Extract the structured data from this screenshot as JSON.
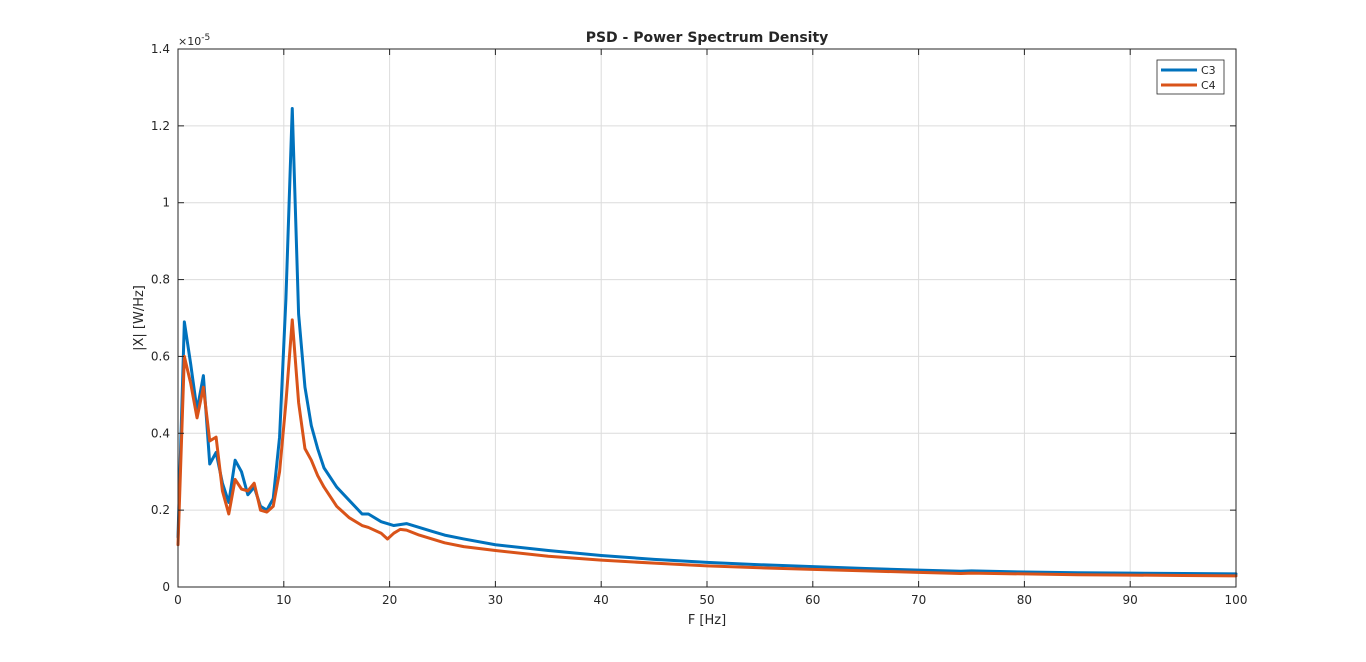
{
  "chart_data": {
    "type": "line",
    "title": "PSD - Power Spectrum Density",
    "xlabel": "F [Hz]",
    "ylabel": "|X| [W/Hz]",
    "y_exponent_label": "×10",
    "y_exponent_power": "-5",
    "xlim": [
      0,
      100
    ],
    "ylim": [
      0,
      1.4
    ],
    "x_ticks": [
      0,
      10,
      20,
      30,
      40,
      50,
      60,
      70,
      80,
      90,
      100
    ],
    "x_tick_labels": [
      "0",
      "10",
      "20",
      "30",
      "40",
      "50",
      "60",
      "70",
      "80",
      "90",
      "100"
    ],
    "y_ticks": [
      0,
      0.2,
      0.4,
      0.6,
      0.8,
      1.0,
      1.2,
      1.4
    ],
    "y_tick_labels": [
      "0",
      "0.2",
      "0.4",
      "0.6",
      "0.8",
      "1",
      "1.2",
      "1.4"
    ],
    "grid": true,
    "legend_position": "top-right",
    "series": [
      {
        "name": "C3",
        "color": "#0072BD",
        "points": [
          [
            0,
            0.13
          ],
          [
            0.6,
            0.69
          ],
          [
            1.2,
            0.58
          ],
          [
            1.8,
            0.46
          ],
          [
            2.4,
            0.55
          ],
          [
            3.0,
            0.32
          ],
          [
            3.6,
            0.35
          ],
          [
            4.2,
            0.27
          ],
          [
            4.8,
            0.22
          ],
          [
            5.4,
            0.33
          ],
          [
            6.0,
            0.3
          ],
          [
            6.6,
            0.24
          ],
          [
            7.2,
            0.26
          ],
          [
            7.8,
            0.21
          ],
          [
            8.4,
            0.2
          ],
          [
            9.0,
            0.23
          ],
          [
            9.6,
            0.39
          ],
          [
            10.2,
            0.75
          ],
          [
            10.8,
            1.245
          ],
          [
            11.4,
            0.71
          ],
          [
            12.0,
            0.52
          ],
          [
            12.6,
            0.42
          ],
          [
            13.2,
            0.36
          ],
          [
            13.8,
            0.31
          ],
          [
            15.0,
            0.26
          ],
          [
            16.2,
            0.225
          ],
          [
            17.4,
            0.19
          ],
          [
            18.0,
            0.19
          ],
          [
            19.2,
            0.17
          ],
          [
            20.4,
            0.16
          ],
          [
            21.6,
            0.165
          ],
          [
            22.8,
            0.155
          ],
          [
            24.0,
            0.145
          ],
          [
            25.2,
            0.135
          ],
          [
            27.0,
            0.125
          ],
          [
            30.0,
            0.11
          ],
          [
            35.0,
            0.095
          ],
          [
            40.0,
            0.082
          ],
          [
            45.0,
            0.072
          ],
          [
            50.0,
            0.064
          ],
          [
            55.0,
            0.058
          ],
          [
            60.0,
            0.053
          ],
          [
            65.0,
            0.048
          ],
          [
            70.0,
            0.044
          ],
          [
            74.0,
            0.041
          ],
          [
            75.0,
            0.042
          ],
          [
            80.0,
            0.039
          ],
          [
            85.0,
            0.037
          ],
          [
            90.0,
            0.036
          ],
          [
            95.0,
            0.035
          ],
          [
            100.0,
            0.034
          ]
        ]
      },
      {
        "name": "C4",
        "color": "#D95319",
        "points": [
          [
            0,
            0.11
          ],
          [
            0.6,
            0.6
          ],
          [
            1.2,
            0.53
          ],
          [
            1.8,
            0.44
          ],
          [
            2.4,
            0.52
          ],
          [
            3.0,
            0.38
          ],
          [
            3.6,
            0.39
          ],
          [
            4.2,
            0.25
          ],
          [
            4.8,
            0.19
          ],
          [
            5.4,
            0.28
          ],
          [
            6.0,
            0.255
          ],
          [
            6.6,
            0.25
          ],
          [
            7.2,
            0.27
          ],
          [
            7.8,
            0.2
          ],
          [
            8.4,
            0.195
          ],
          [
            9.0,
            0.21
          ],
          [
            9.6,
            0.3
          ],
          [
            10.2,
            0.48
          ],
          [
            10.8,
            0.695
          ],
          [
            11.4,
            0.48
          ],
          [
            12.0,
            0.36
          ],
          [
            12.6,
            0.33
          ],
          [
            13.2,
            0.29
          ],
          [
            13.8,
            0.26
          ],
          [
            15.0,
            0.21
          ],
          [
            16.2,
            0.18
          ],
          [
            17.4,
            0.16
          ],
          [
            18.0,
            0.155
          ],
          [
            19.2,
            0.14
          ],
          [
            19.8,
            0.125
          ],
          [
            20.4,
            0.14
          ],
          [
            21.0,
            0.15
          ],
          [
            21.6,
            0.148
          ],
          [
            22.8,
            0.135
          ],
          [
            24.0,
            0.125
          ],
          [
            25.2,
            0.115
          ],
          [
            27.0,
            0.105
          ],
          [
            30.0,
            0.095
          ],
          [
            35.0,
            0.08
          ],
          [
            40.0,
            0.07
          ],
          [
            45.0,
            0.062
          ],
          [
            50.0,
            0.055
          ],
          [
            55.0,
            0.05
          ],
          [
            60.0,
            0.046
          ],
          [
            65.0,
            0.042
          ],
          [
            70.0,
            0.038
          ],
          [
            74.0,
            0.035
          ],
          [
            75.0,
            0.036
          ],
          [
            80.0,
            0.034
          ],
          [
            85.0,
            0.032
          ],
          [
            90.0,
            0.031
          ],
          [
            95.0,
            0.03
          ],
          [
            100.0,
            0.029
          ]
        ]
      }
    ]
  }
}
